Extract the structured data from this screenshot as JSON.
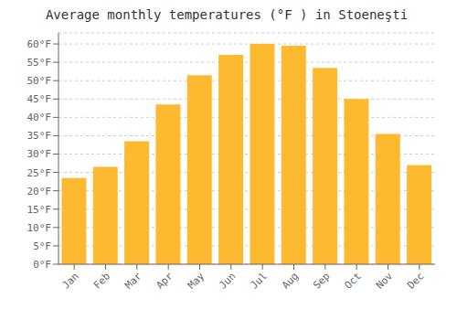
{
  "chart_data": {
    "type": "bar",
    "title": "Average monthly temperatures (°F ) in Stoeneşti",
    "categories": [
      "Jan",
      "Feb",
      "Mar",
      "Apr",
      "May",
      "Jun",
      "Jul",
      "Aug",
      "Sep",
      "Oct",
      "Nov",
      "Dec"
    ],
    "values": [
      23.5,
      26.5,
      33.5,
      43.5,
      51.5,
      57.0,
      60.0,
      59.5,
      53.5,
      45.0,
      35.5,
      27.0
    ],
    "color": "#FDB930",
    "ylim": [
      0,
      63
    ],
    "yticks": [
      {
        "value": 0,
        "label": "0°F"
      },
      {
        "value": 5,
        "label": "5°F"
      },
      {
        "value": 10,
        "label": "10°F"
      },
      {
        "value": 15,
        "label": "15°F"
      },
      {
        "value": 20,
        "label": "20°F"
      },
      {
        "value": 25,
        "label": "25°F"
      },
      {
        "value": 30,
        "label": "30°F"
      },
      {
        "value": 35,
        "label": "35°F"
      },
      {
        "value": 40,
        "label": "40°F"
      },
      {
        "value": 45,
        "label": "45°F"
      },
      {
        "value": 50,
        "label": "50°F"
      },
      {
        "value": 55,
        "label": "55°F"
      },
      {
        "value": 60,
        "label": "60°F"
      }
    ],
    "grid": true
  }
}
